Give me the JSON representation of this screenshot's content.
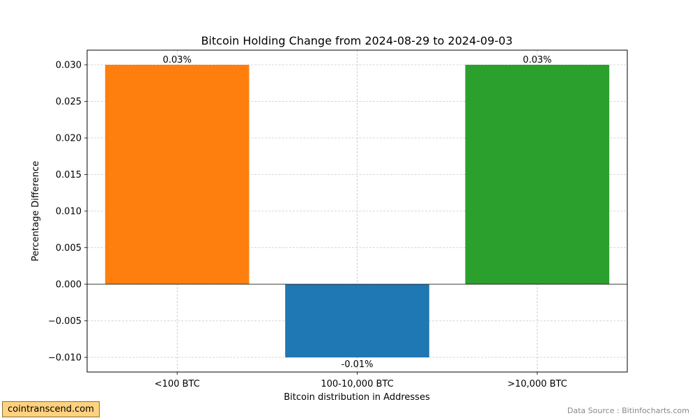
{
  "chart_data": {
    "type": "bar",
    "title": "Bitcoin Holding Change from 2024-08-29 to 2024-09-03",
    "xlabel": "Bitcoin distribution in Addresses",
    "ylabel": "Percentage Difference",
    "categories": [
      "<100 BTC",
      "100-10,000 BTC",
      ">10,000 BTC"
    ],
    "values": [
      0.03,
      -0.01,
      0.03
    ],
    "data_labels": [
      "0.03%",
      "-0.01%",
      "0.03%"
    ],
    "colors": [
      "#ff7f0e",
      "#1f77b4",
      "#2ca02c"
    ],
    "ylim": [
      -0.012,
      0.032
    ],
    "yticks": [
      -0.01,
      -0.005,
      0.0,
      0.005,
      0.01,
      0.015,
      0.02,
      0.025,
      0.03
    ],
    "ytick_labels": [
      "−0.010",
      "−0.005",
      "0.000",
      "0.005",
      "0.010",
      "0.015",
      "0.020",
      "0.025",
      "0.030"
    ],
    "grid": true
  },
  "footer": {
    "watermark": "cointranscend.com",
    "source": "Data Source : Bitinfocharts.com"
  }
}
